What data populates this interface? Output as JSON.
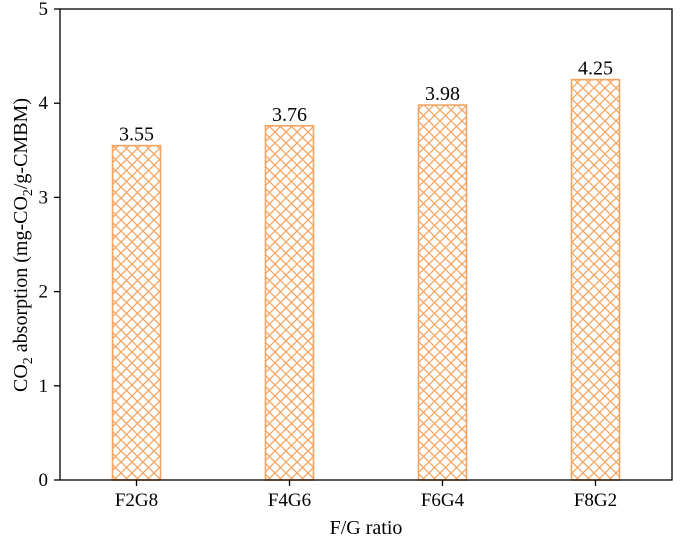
{
  "chart_data": {
    "type": "bar",
    "categories": [
      "F2G8",
      "F4G6",
      "F6G4",
      "F8G2"
    ],
    "values": [
      3.55,
      3.76,
      3.98,
      4.25
    ],
    "data_labels": [
      "3.55",
      "3.76",
      "3.98",
      "4.25"
    ],
    "title": "",
    "xlabel": "F/G ratio",
    "ylabel": {
      "prefix": "CO",
      "prefix_sub": "2",
      "middle": " absorption (mg-CO",
      "middle_sub": "2",
      "suffix": "/g-CMBM)"
    },
    "ylim": [
      0,
      5
    ],
    "yticks": [
      0,
      1,
      2,
      3,
      4,
      5
    ],
    "grid": false,
    "legend": "none",
    "bar_style": {
      "edge_color": "#f4a460",
      "hatch_color": "#f4a460",
      "fill": "crosshatch"
    }
  }
}
